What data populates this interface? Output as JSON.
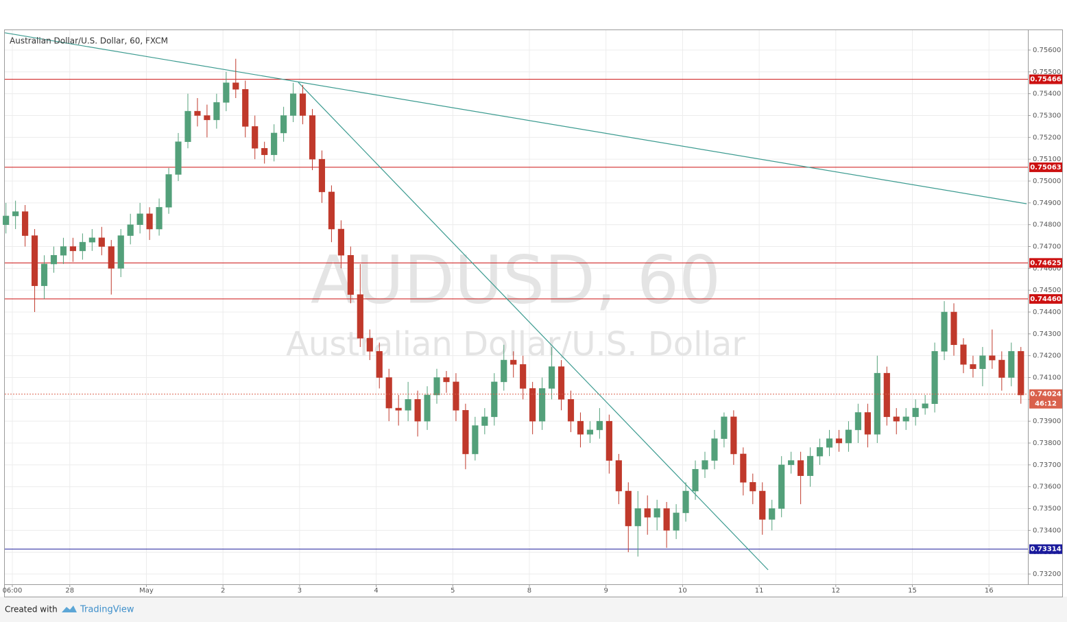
{
  "chart_data": {
    "type": "candlestick",
    "title": "Australian Dollar/U.S. Dollar, 60, FXCM",
    "watermark": [
      "AUDUSD, 60",
      "Australian Dollar/U.S. Dollar"
    ],
    "up_color": "#53a07a",
    "down_color": "#c0392b",
    "grid": true,
    "x": [
      -2,
      1,
      4,
      7,
      10,
      13,
      16,
      19,
      22,
      25,
      28,
      31,
      34,
      37,
      40,
      43,
      46,
      49,
      52,
      55,
      58,
      61,
      64,
      67,
      70,
      73,
      76,
      79,
      82,
      85,
      88,
      91,
      94,
      97,
      100,
      103,
      106,
      109,
      112,
      115,
      118,
      121,
      124,
      127,
      130,
      133,
      136,
      139,
      142,
      145,
      148,
      151,
      154,
      157,
      160,
      163,
      166,
      169,
      172,
      175,
      178,
      181,
      184,
      187,
      190,
      193,
      196,
      199,
      202,
      205,
      208,
      211,
      214,
      217,
      220,
      223,
      226,
      229,
      232,
      235,
      238,
      241,
      244,
      247,
      250,
      253,
      256,
      259,
      262,
      265,
      268,
      271,
      274,
      277,
      280,
      283,
      286,
      289,
      292,
      295,
      298,
      301,
      304,
      307,
      310,
      313,
      316
    ],
    "open": [
      0.748,
      0.7484,
      0.7486,
      0.7475,
      0.7452,
      0.7462,
      0.7466,
      0.747,
      0.7468,
      0.7472,
      0.7474,
      0.747,
      0.746,
      0.7475,
      0.748,
      0.7485,
      0.7478,
      0.7488,
      0.7503,
      0.7518,
      0.7532,
      0.753,
      0.7528,
      0.7536,
      0.7545,
      0.7542,
      0.7525,
      0.7515,
      0.7512,
      0.7522,
      0.753,
      0.754,
      0.753,
      0.751,
      0.7495,
      0.7478,
      0.7466,
      0.7448,
      0.7428,
      0.7422,
      0.741,
      0.7396,
      0.7395,
      0.74,
      0.739,
      0.7402,
      0.741,
      0.7408,
      0.7395,
      0.7375,
      0.7388,
      0.7392,
      0.7408,
      0.7418,
      0.7416,
      0.7405,
      0.739,
      0.7405,
      0.7415,
      0.74,
      0.739,
      0.7384,
      0.7386,
      0.739,
      0.7372,
      0.7358,
      0.7342,
      0.735,
      0.7346,
      0.735,
      0.734,
      0.7348,
      0.7358,
      0.7368,
      0.7372,
      0.7382,
      0.7392,
      0.7375,
      0.7362,
      0.7358,
      0.7345,
      0.735,
      0.737,
      0.7372,
      0.7365,
      0.7374,
      0.7378,
      0.7382,
      0.738,
      0.7386,
      0.7394,
      0.7384,
      0.7412,
      0.7392,
      0.739,
      0.7392,
      0.7396,
      0.7398,
      0.7422,
      0.744,
      0.7425,
      0.7416,
      0.7414,
      0.742,
      0.7418,
      0.741,
      0.7422
    ],
    "high": [
      0.749,
      0.7491,
      0.7489,
      0.7478,
      0.7466,
      0.747,
      0.7474,
      0.7474,
      0.7476,
      0.7478,
      0.7479,
      0.7473,
      0.7478,
      0.7485,
      0.749,
      0.7488,
      0.7492,
      0.7506,
      0.7522,
      0.754,
      0.7538,
      0.7535,
      0.754,
      0.755,
      0.7556,
      0.7546,
      0.753,
      0.7518,
      0.7526,
      0.7534,
      0.7545,
      0.7544,
      0.7533,
      0.7514,
      0.7498,
      0.7482,
      0.747,
      0.7462,
      0.7432,
      0.7426,
      0.7414,
      0.7402,
      0.7408,
      0.7404,
      0.7406,
      0.7414,
      0.7413,
      0.7412,
      0.7398,
      0.7392,
      0.7396,
      0.7412,
      0.7425,
      0.7422,
      0.742,
      0.7408,
      0.741,
      0.7424,
      0.7418,
      0.7404,
      0.7394,
      0.739,
      0.7396,
      0.7393,
      0.7375,
      0.7362,
      0.7358,
      0.7356,
      0.7354,
      0.7353,
      0.7352,
      0.7362,
      0.7372,
      0.7376,
      0.7386,
      0.7394,
      0.7395,
      0.7378,
      0.7366,
      0.7362,
      0.7354,
      0.7374,
      0.7376,
      0.7376,
      0.7378,
      0.7382,
      0.7386,
      0.7386,
      0.739,
      0.7398,
      0.7398,
      0.742,
      0.7415,
      0.7396,
      0.7396,
      0.74,
      0.7402,
      0.7426,
      0.7445,
      0.7444,
      0.7428,
      0.742,
      0.7424,
      0.7432,
      0.7422,
      0.7426,
      0.7424
    ],
    "low": [
      0.7476,
      0.7478,
      0.747,
      0.744,
      0.7446,
      0.7458,
      0.7462,
      0.7463,
      0.7464,
      0.7468,
      0.7466,
      0.7448,
      0.7456,
      0.7471,
      0.7476,
      0.7473,
      0.7475,
      0.7485,
      0.75,
      0.7515,
      0.7525,
      0.752,
      0.7524,
      0.7532,
      0.7538,
      0.752,
      0.751,
      0.7508,
      0.7509,
      0.7518,
      0.7527,
      0.7526,
      0.7505,
      0.749,
      0.7472,
      0.746,
      0.7444,
      0.7424,
      0.7418,
      0.7405,
      0.739,
      0.7388,
      0.739,
      0.7383,
      0.7386,
      0.7398,
      0.7403,
      0.739,
      0.7368,
      0.7372,
      0.7384,
      0.7388,
      0.7404,
      0.741,
      0.74,
      0.7384,
      0.7386,
      0.74,
      0.7395,
      0.7385,
      0.7378,
      0.738,
      0.7382,
      0.7366,
      0.7352,
      0.733,
      0.7328,
      0.7338,
      0.734,
      0.7332,
      0.7336,
      0.7344,
      0.7354,
      0.7364,
      0.7368,
      0.7378,
      0.737,
      0.7356,
      0.7352,
      0.7338,
      0.734,
      0.7346,
      0.7366,
      0.7352,
      0.736,
      0.737,
      0.7374,
      0.7376,
      0.7376,
      0.738,
      0.7378,
      0.738,
      0.7388,
      0.7384,
      0.7386,
      0.7388,
      0.7393,
      0.7394,
      0.7418,
      0.742,
      0.7412,
      0.741,
      0.7406,
      0.7414,
      0.7404,
      0.7406,
      0.7398
    ],
    "close": [
      0.7484,
      0.7486,
      0.7475,
      0.7452,
      0.7462,
      0.7466,
      0.747,
      0.7468,
      0.7472,
      0.7474,
      0.747,
      0.746,
      0.7475,
      0.748,
      0.7485,
      0.7478,
      0.7488,
      0.7503,
      0.7518,
      0.7532,
      0.753,
      0.7528,
      0.7536,
      0.7545,
      0.7542,
      0.7525,
      0.7515,
      0.7512,
      0.7522,
      0.753,
      0.754,
      0.753,
      0.751,
      0.7495,
      0.7478,
      0.7466,
      0.7448,
      0.7428,
      0.7422,
      0.741,
      0.7396,
      0.7395,
      0.74,
      0.739,
      0.7402,
      0.741,
      0.7408,
      0.7395,
      0.7375,
      0.7388,
      0.7392,
      0.7408,
      0.7418,
      0.7416,
      0.7405,
      0.739,
      0.7405,
      0.7415,
      0.74,
      0.739,
      0.7384,
      0.7386,
      0.739,
      0.7372,
      0.7358,
      0.7342,
      0.735,
      0.7346,
      0.735,
      0.734,
      0.7348,
      0.7358,
      0.7368,
      0.7372,
      0.7382,
      0.7392,
      0.7375,
      0.7362,
      0.7358,
      0.7345,
      0.735,
      0.737,
      0.7372,
      0.7365,
      0.7374,
      0.7378,
      0.7382,
      0.738,
      0.7386,
      0.7394,
      0.7384,
      0.7412,
      0.7392,
      0.739,
      0.7392,
      0.7396,
      0.7398,
      0.7422,
      0.744,
      0.7425,
      0.7416,
      0.7414,
      0.742,
      0.7418,
      0.741,
      0.7422,
      0.7402
    ],
    "xlim": [
      -2.36,
      318.2
    ],
    "ylim": [
      0.73153,
      0.75691
    ],
    "xticks": [
      {
        "value": 0,
        "label": "06:00"
      },
      {
        "value": 18,
        "label": "28"
      },
      {
        "value": 42,
        "label": "May"
      },
      {
        "value": 66,
        "label": "2"
      },
      {
        "value": 90,
        "label": "3"
      },
      {
        "value": 114,
        "label": "4"
      },
      {
        "value": 138,
        "label": "5"
      },
      {
        "value": 162,
        "label": "8"
      },
      {
        "value": 186,
        "label": "9"
      },
      {
        "value": 210,
        "label": "10"
      },
      {
        "value": 234,
        "label": "11"
      },
      {
        "value": 258,
        "label": "12"
      },
      {
        "value": 282,
        "label": "15"
      },
      {
        "value": 306,
        "label": "16"
      }
    ],
    "yticks": [
      {
        "value": 0.732,
        "label": "0.73200"
      },
      {
        "value": 0.733,
        "label": "0.73300"
      },
      {
        "value": 0.734,
        "label": "0.73400"
      },
      {
        "value": 0.735,
        "label": "0.73500"
      },
      {
        "value": 0.736,
        "label": "0.73600"
      },
      {
        "value": 0.737,
        "label": "0.73700"
      },
      {
        "value": 0.738,
        "label": "0.73800"
      },
      {
        "value": 0.739,
        "label": "0.73900"
      },
      {
        "value": 0.74,
        "label": "0.74000"
      },
      {
        "value": 0.741,
        "label": "0.74100"
      },
      {
        "value": 0.742,
        "label": "0.74200"
      },
      {
        "value": 0.743,
        "label": "0.74300"
      },
      {
        "value": 0.744,
        "label": "0.74400"
      },
      {
        "value": 0.745,
        "label": "0.74500"
      },
      {
        "value": 0.746,
        "label": "0.74600"
      },
      {
        "value": 0.747,
        "label": "0.74700"
      },
      {
        "value": 0.748,
        "label": "0.74800"
      },
      {
        "value": 0.749,
        "label": "0.74900"
      },
      {
        "value": 0.75,
        "label": "0.75000"
      },
      {
        "value": 0.751,
        "label": "0.75100"
      },
      {
        "value": 0.752,
        "label": "0.75200"
      },
      {
        "value": 0.753,
        "label": "0.75300"
      },
      {
        "value": 0.754,
        "label": "0.75400"
      },
      {
        "value": 0.755,
        "label": "0.75500"
      },
      {
        "value": 0.756,
        "label": "0.75600"
      }
    ],
    "levels": [
      {
        "value": 0.75466,
        "color": "#cc1111"
      },
      {
        "value": 0.75063,
        "color": "#cc1111"
      },
      {
        "value": 0.74625,
        "color": "#cc1111"
      },
      {
        "value": 0.7446,
        "label": "0.74460",
        "color": "#cc1111"
      },
      {
        "value": 0.73314,
        "color": "#1a1a9c"
      }
    ],
    "trendlines": [
      {
        "x": [
          -2.36,
          317.8
        ],
        "y": [
          0.75679,
          0.74896
        ],
        "color": "#3a9a8f"
      },
      {
        "x": [
          89.6,
          236.8
        ],
        "y": [
          0.75452,
          0.73219
        ],
        "color": "#3a9a8f"
      }
    ],
    "last_price": 0.74024,
    "last_price_color": "#d9614c",
    "countdown": "46:12",
    "footer": {
      "text": "Created with",
      "brand": "TradingView"
    }
  }
}
